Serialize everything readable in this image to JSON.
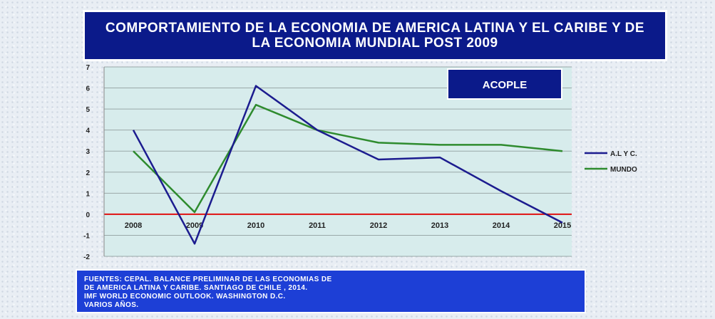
{
  "chart_data": {
    "type": "line",
    "title": "COMPORTAMIENTO DE LA ECONOMIA DE AMERICA LATINA Y EL CARIBE Y DE LA ECONOMIA MUNDIAL POST 2009",
    "categories": [
      "2008",
      "2009",
      "2010",
      "2011",
      "2012",
      "2013",
      "2014",
      "2015"
    ],
    "series": [
      {
        "name": "A.L Y C.",
        "color": "#1c1c8f",
        "values": [
          4.0,
          -1.4,
          6.1,
          4.0,
          2.6,
          2.7,
          1.1,
          -0.4
        ]
      },
      {
        "name": "MUNDO",
        "color": "#2e8b2e",
        "values": [
          3.0,
          0.1,
          5.2,
          4.0,
          3.4,
          3.3,
          3.3,
          3.0
        ]
      }
    ],
    "ylim": [
      -2,
      7
    ],
    "yticks": [
      "7",
      "6",
      "5",
      "4",
      "3",
      "2",
      "1",
      "0",
      "-1",
      "-2"
    ],
    "reference_line": {
      "value": 0,
      "color": "#e01010"
    },
    "annotation": "ACOPLE",
    "grid": true,
    "legend_position": "right",
    "xlabel": "",
    "ylabel": ""
  },
  "source_text": "FUENTES: CEPAL. BALANCE PRELIMINAR DE LAS ECONOMIAS DE\n                DE AMERICA LATINA Y CARIBE. SANTIAGO DE CHILE , 2014.\n                IMF WORLD ECONOMIC OUTLOOK. WASHINGTON D.C.\n                VARIOS AÑOS.",
  "colors": {
    "title_bg": "#0b1a8a",
    "annotation_bg": "#0b1a8a",
    "source_bg": "#1d3fd6",
    "plot_bg": "#d7ecec"
  }
}
